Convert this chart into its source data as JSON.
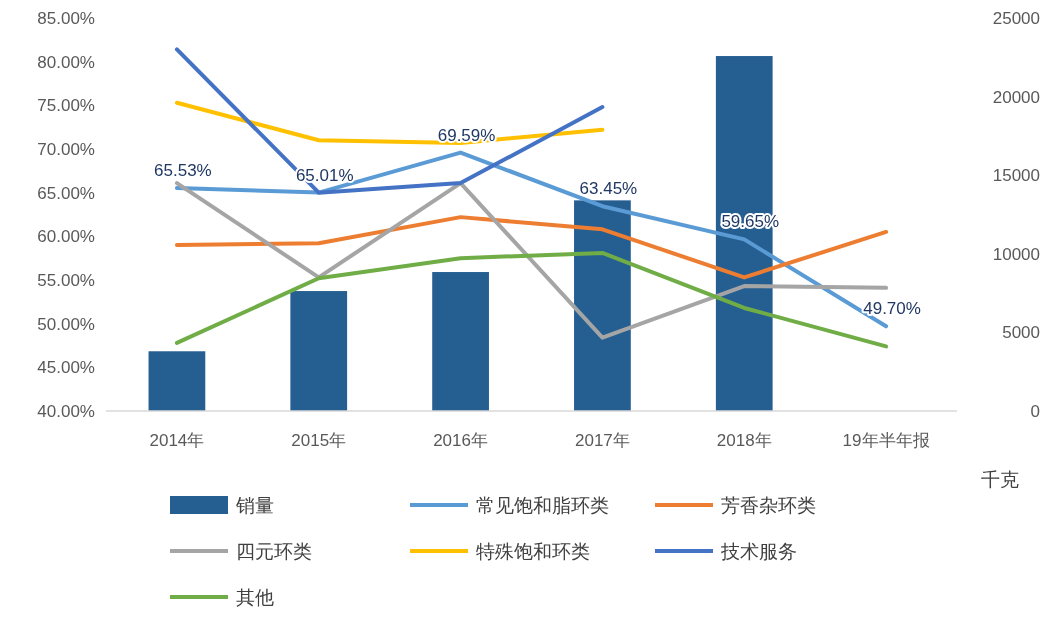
{
  "chart_data": {
    "type": "bar",
    "categories": [
      "2014年",
      "2015年",
      "2016年",
      "2017年",
      "2018年",
      "19年半年报"
    ],
    "y2label": "千克",
    "legend": "bottom",
    "grid": false,
    "ylim": [
      40,
      85
    ],
    "yticks": [
      {
        "value": 40,
        "label": "40.00%"
      },
      {
        "value": 45,
        "label": "45.00%"
      },
      {
        "value": 50,
        "label": "50.00%"
      },
      {
        "value": 55,
        "label": "55.00%"
      },
      {
        "value": 60,
        "label": "60.00%"
      },
      {
        "value": 65,
        "label": "65.00%"
      },
      {
        "value": 70,
        "label": "70.00%"
      },
      {
        "value": 75,
        "label": "75.00%"
      },
      {
        "value": 80,
        "label": "80.00%"
      },
      {
        "value": 85,
        "label": "85.00%"
      }
    ],
    "y2lim": [
      0,
      25000
    ],
    "y2ticks": [
      0,
      5000,
      10000,
      15000,
      20000,
      25000
    ],
    "series": [
      {
        "name": "销量",
        "axis": "y2",
        "color": "#255e91",
        "values": [
          3800,
          7630,
          8840,
          13400,
          22580,
          null
        ]
      },
      {
        "name": "常见饱和脂环类",
        "type": "line",
        "color": "#5b9bd5",
        "values": [
          65.53,
          65.01,
          69.59,
          63.45,
          59.65,
          49.7
        ],
        "value_labels": [
          "65.53%",
          "65.01%",
          "69.59%",
          "63.45%",
          "59.65%",
          "49.70%"
        ]
      },
      {
        "name": "芳香杂环类",
        "type": "line",
        "color": "#ed7d31",
        "values": [
          59.0,
          59.2,
          62.2,
          60.8,
          55.3,
          60.5
        ]
      },
      {
        "name": "四元环类",
        "type": "line",
        "color": "#a5a5a5",
        "values": [
          66.1,
          55.3,
          66.1,
          48.4,
          54.3,
          54.1
        ]
      },
      {
        "name": "特殊饱和环类",
        "type": "line",
        "color": "#ffc000",
        "values": [
          75.3,
          71.0,
          70.7,
          72.2,
          null,
          null
        ]
      },
      {
        "name": "技术服务",
        "type": "line",
        "color": "#4472c4",
        "values": [
          81.4,
          65.0,
          66.1,
          74.8,
          null,
          null
        ]
      },
      {
        "name": "其他",
        "type": "line",
        "color": "#70ad47",
        "values": [
          47.8,
          55.2,
          57.5,
          58.1,
          51.8,
          47.4
        ]
      }
    ]
  }
}
